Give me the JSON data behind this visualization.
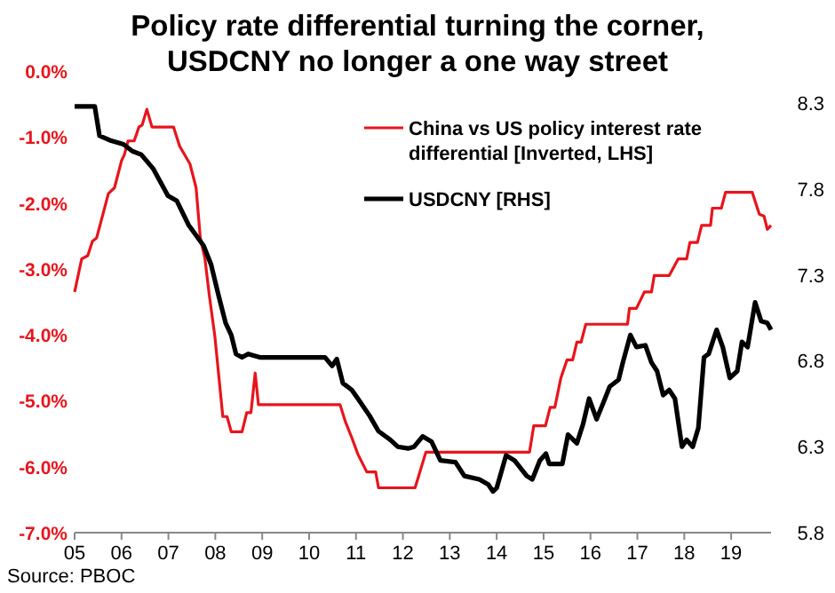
{
  "chart_data": {
    "type": "line",
    "title": "Policy rate differential turning the corner,\nUSDCNY no longer a one way street",
    "annotations": [
      "Source: PBOC"
    ],
    "legend": "top right",
    "grid": false,
    "xlim": [
      2005,
      2019.85
    ],
    "xticks": [
      {
        "value": 2005,
        "label": "05"
      },
      {
        "value": 2006,
        "label": "06"
      },
      {
        "value": 2007,
        "label": "07"
      },
      {
        "value": 2008,
        "label": "08"
      },
      {
        "value": 2009,
        "label": "09"
      },
      {
        "value": 2010,
        "label": "10"
      },
      {
        "value": 2011,
        "label": "11"
      },
      {
        "value": 2012,
        "label": "12"
      },
      {
        "value": 2013,
        "label": "13"
      },
      {
        "value": 2014,
        "label": "14"
      },
      {
        "value": 2015,
        "label": "15"
      },
      {
        "value": 2016,
        "label": "16"
      },
      {
        "value": 2017,
        "label": "17"
      },
      {
        "value": 2018,
        "label": "18"
      },
      {
        "value": 2019,
        "label": "19"
      }
    ],
    "ylim": [
      -7,
      0
    ],
    "yticks": [
      {
        "value": -7,
        "label": "-7.0%"
      },
      {
        "value": -6,
        "label": "-6.0%"
      },
      {
        "value": -5,
        "label": "-5.0%"
      },
      {
        "value": -4,
        "label": "-4.0%"
      },
      {
        "value": -3,
        "label": "-3.0%"
      },
      {
        "value": -2,
        "label": "-2.0%"
      },
      {
        "value": -1,
        "label": "-1.0%"
      },
      {
        "value": 0,
        "label": "0.0%"
      }
    ],
    "y2lim": [
      5.8,
      8.3
    ],
    "y2ticks": [
      5.8,
      6.3,
      6.8,
      7.3,
      7.8,
      8.3
    ],
    "series": [
      {
        "name": "China vs US policy interest rate differential [Inverted, LHS]",
        "color": "#e8141c",
        "x": [
          2005.0,
          2005.15,
          2005.28,
          2005.38,
          2005.47,
          2005.72,
          2005.85,
          2006.0,
          2006.06,
          2006.14,
          2006.27,
          2006.37,
          2006.44,
          2006.54,
          2006.65,
          2007.11,
          2007.24,
          2007.37,
          2007.46,
          2007.59,
          2007.68,
          2007.78,
          2007.87,
          2007.99,
          2008.16,
          2008.25,
          2008.34,
          2008.57,
          2008.67,
          2008.76,
          2008.85,
          2008.92,
          2010.66,
          2010.78,
          2010.91,
          2011.04,
          2011.23,
          2011.42,
          2011.48,
          2012.26,
          2012.49,
          2014.7,
          2014.79,
          2015.04,
          2015.14,
          2015.24,
          2015.37,
          2015.5,
          2015.62,
          2015.71,
          2015.8,
          2015.9,
          2016.79,
          2016.83,
          2016.98,
          2017.15,
          2017.3,
          2017.36,
          2017.68,
          2017.87,
          2018.05,
          2018.12,
          2018.28,
          2018.37,
          2018.56,
          2018.6,
          2018.79,
          2018.88,
          2019.45,
          2019.6,
          2019.7,
          2019.77,
          2019.85
        ],
        "values": [
          -3.35,
          -2.85,
          -2.8,
          -2.58,
          -2.53,
          -1.86,
          -1.77,
          -1.36,
          -1.27,
          -1.06,
          -1.06,
          -0.85,
          -0.82,
          -0.58,
          -0.85,
          -0.85,
          -1.14,
          -1.3,
          -1.41,
          -1.77,
          -2.53,
          -2.85,
          -3.39,
          -4.02,
          -5.24,
          -5.24,
          -5.47,
          -5.47,
          -5.18,
          -5.18,
          -4.58,
          -5.06,
          -5.06,
          -5.33,
          -5.56,
          -5.81,
          -6.08,
          -6.08,
          -6.32,
          -6.32,
          -5.78,
          -5.78,
          -5.38,
          -5.38,
          -5.1,
          -5.1,
          -4.65,
          -4.38,
          -4.38,
          -4.11,
          -4.11,
          -3.84,
          -3.84,
          -3.6,
          -3.6,
          -3.35,
          -3.35,
          -3.1,
          -3.1,
          -2.85,
          -2.85,
          -2.6,
          -2.6,
          -2.34,
          -2.34,
          -2.08,
          -2.08,
          -1.84,
          -1.84,
          -2.17,
          -2.2,
          -2.4,
          -2.34
        ]
      },
      {
        "name": "USDCNY [RHS]",
        "color": "#000000",
        "axis": "y2",
        "x": [
          2005.0,
          2005.43,
          2005.53,
          2005.78,
          2006.04,
          2006.23,
          2006.42,
          2006.67,
          2006.99,
          2007.18,
          2007.43,
          2007.75,
          2007.91,
          2008.06,
          2008.22,
          2008.34,
          2008.44,
          2008.57,
          2008.7,
          2008.95,
          2009.46,
          2010.34,
          2010.49,
          2010.59,
          2010.72,
          2010.91,
          2011.04,
          2011.29,
          2011.48,
          2011.73,
          2011.89,
          2012.11,
          2012.24,
          2012.42,
          2012.61,
          2012.8,
          2013.12,
          2013.31,
          2013.63,
          2013.82,
          2013.92,
          2014.0,
          2014.2,
          2014.38,
          2014.64,
          2014.76,
          2014.92,
          2015.05,
          2015.12,
          2015.4,
          2015.52,
          2015.71,
          2015.84,
          2015.97,
          2016.13,
          2016.28,
          2016.41,
          2016.6,
          2016.69,
          2016.85,
          2016.98,
          2017.17,
          2017.3,
          2017.42,
          2017.55,
          2017.68,
          2017.8,
          2017.95,
          2018.05,
          2018.18,
          2018.3,
          2018.42,
          2018.52,
          2018.69,
          2018.82,
          2018.97,
          2019.13,
          2019.23,
          2019.35,
          2019.51,
          2019.64,
          2019.77,
          2019.85
        ],
        "values": [
          8.28,
          8.28,
          8.11,
          8.08,
          8.06,
          8.02,
          8.0,
          7.92,
          7.76,
          7.73,
          7.59,
          7.47,
          7.36,
          7.19,
          7.02,
          6.95,
          6.84,
          6.82,
          6.84,
          6.82,
          6.82,
          6.82,
          6.77,
          6.81,
          6.67,
          6.63,
          6.58,
          6.48,
          6.39,
          6.34,
          6.3,
          6.29,
          6.3,
          6.36,
          6.33,
          6.22,
          6.21,
          6.13,
          6.11,
          6.08,
          6.04,
          6.06,
          6.25,
          6.22,
          6.13,
          6.11,
          6.22,
          6.26,
          6.2,
          6.2,
          6.37,
          6.32,
          6.43,
          6.58,
          6.46,
          6.56,
          6.65,
          6.69,
          6.79,
          6.95,
          6.88,
          6.89,
          6.79,
          6.74,
          6.6,
          6.63,
          6.58,
          6.3,
          6.34,
          6.3,
          6.41,
          6.82,
          6.84,
          6.98,
          6.88,
          6.7,
          6.74,
          6.91,
          6.88,
          7.14,
          7.03,
          7.02,
          6.98
        ]
      }
    ]
  }
}
